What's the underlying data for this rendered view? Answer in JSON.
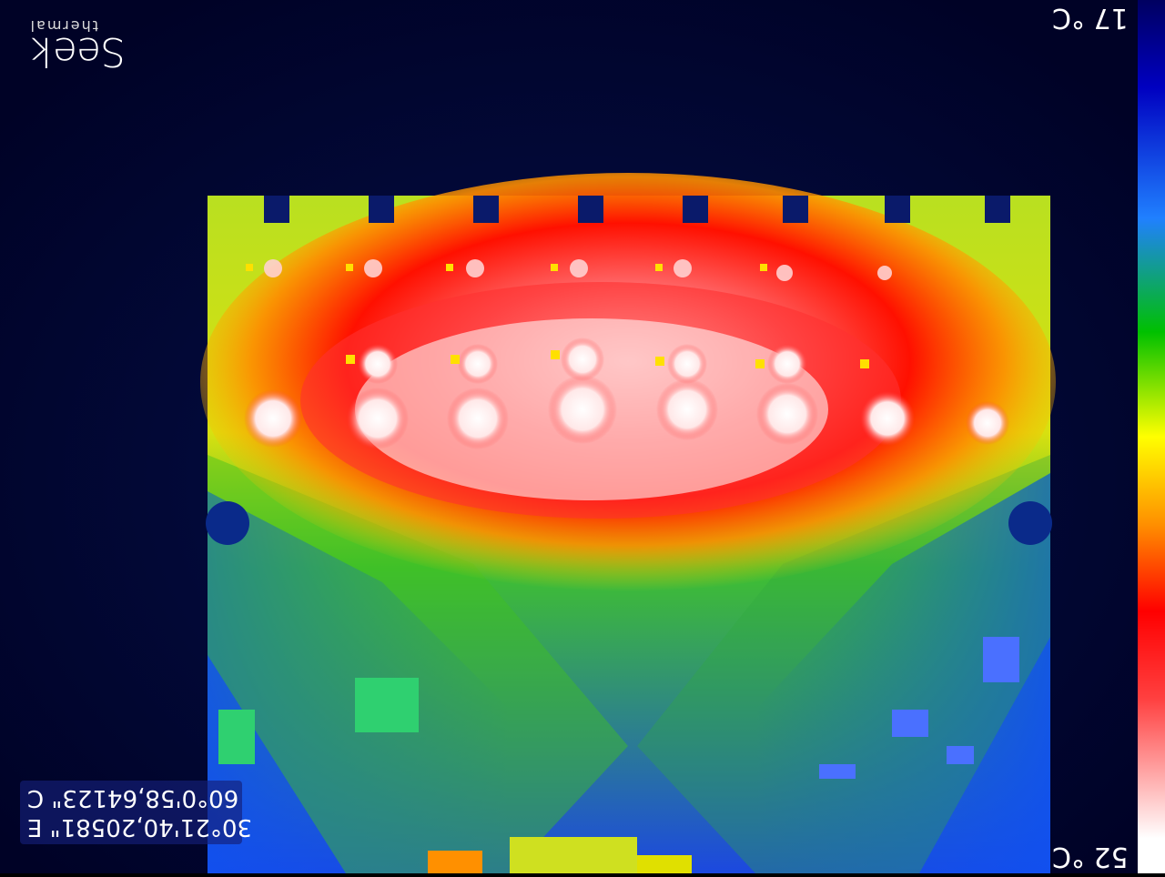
{
  "scale": {
    "max_label": "52 °C",
    "min_label": "17 °C",
    "colors": [
      "#ffffff",
      "#ff8c00",
      "#ff0000",
      "#ffff00",
      "#00c000",
      "#0060ff",
      "#0000a0"
    ]
  },
  "gps": {
    "line1": "30°21'40,20581\" E",
    "line2": "60°0'58,64123\" C"
  },
  "logo": {
    "brand": "Seek",
    "sub": "thermal"
  }
}
